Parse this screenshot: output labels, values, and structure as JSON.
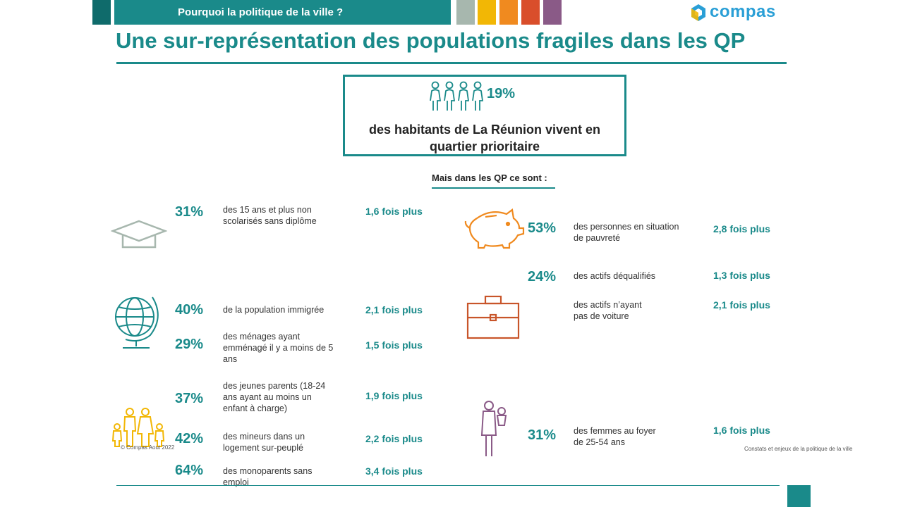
{
  "header": {
    "section_title": "Pourquoi la politique de la ville ?",
    "logo_text": "compas",
    "colors": {
      "dark_teal": "#0f6b6b",
      "teal": "#1a8a8a",
      "sage": "#a7b7ae",
      "yellow": "#f2b705",
      "orange": "#f08a1f",
      "red": "#d94e2b",
      "purple": "#8a5a87"
    }
  },
  "page_title": "Une sur-représentation des populations fragiles dans les QP",
  "highlight": {
    "pct": "19%",
    "text": "des habitants de La Réunion vivent en quartier prioritaire"
  },
  "subheading": "Mais dans les QP ce sont :",
  "left_stats": [
    {
      "pct": "31%",
      "desc": "des 15 ans et plus non scolarisés sans diplôme",
      "factor": "1,6 fois plus"
    },
    {
      "pct": "40%",
      "desc": "de la population immigrée",
      "factor": "2,1 fois plus"
    },
    {
      "pct": "29%",
      "desc": "des ménages ayant emménagé il y a moins de 5 ans",
      "factor": "1,5 fois plus"
    },
    {
      "pct": "37%",
      "desc": "des jeunes parents (18-24 ans ayant au moins un enfant à charge)",
      "factor": "1,9 fois plus"
    },
    {
      "pct": "42%",
      "desc": "des mineurs dans un logement sur-peuplé",
      "factor": "2,2 fois plus"
    },
    {
      "pct": "64%",
      "desc": "des monoparents sans emploi",
      "factor": "3,4 fois plus"
    }
  ],
  "right_stats": [
    {
      "pct": "53%",
      "desc": "des personnes en situation de pauvreté",
      "factor": "2,8 fois plus"
    },
    {
      "pct": "24%",
      "desc": "des actifs déqualifiés",
      "factor": "1,3 fois plus"
    },
    {
      "pct": "",
      "desc": "des actifs n’ayant pas de voiture",
      "factor": "2,1 fois plus"
    },
    {
      "pct": "31%",
      "desc": "des femmes au foyer de 25-54 ans",
      "factor": "1,6 fois plus"
    }
  ],
  "footer": {
    "copyright": "© Compas Aout 2022",
    "source": "Constats et enjeux de la politique de la ville"
  },
  "icons": [
    "people-group-icon",
    "graduation-cap-icon",
    "globe-icon",
    "family-icon",
    "piggy-bank-icon",
    "briefcase-icon",
    "mother-child-icon",
    "compas-logo-icon"
  ]
}
